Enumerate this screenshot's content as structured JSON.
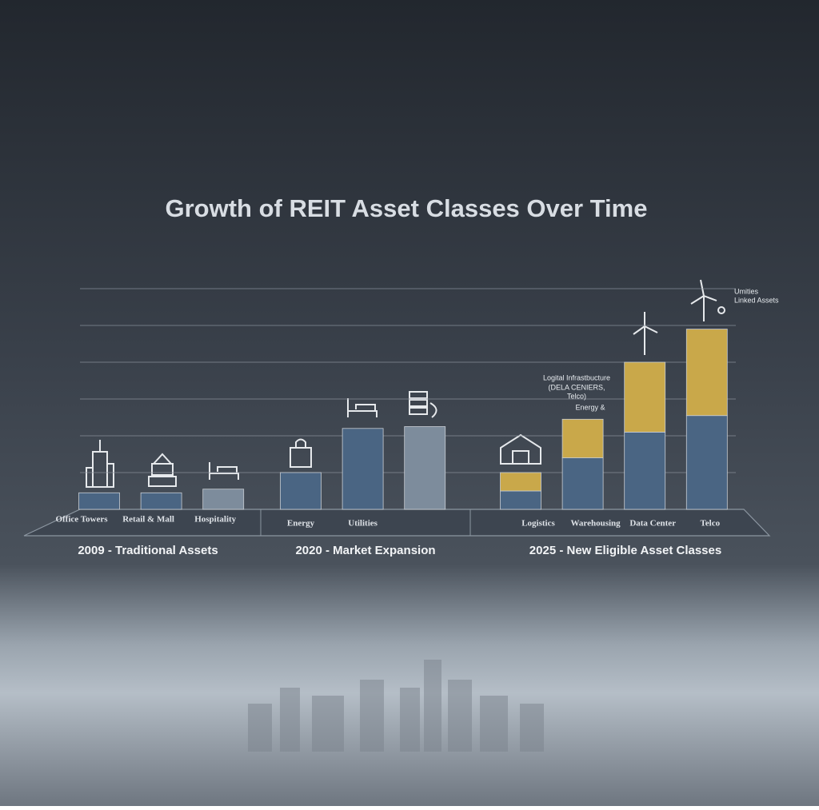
{
  "chart_data": {
    "type": "stacked-bar",
    "title": "Growth of REIT Asset Classes Over Time",
    "groups": [
      {
        "label": "2009 - Traditional Assets",
        "categories": [
          "Office Towers",
          "Retail & Mall",
          "Hospitality"
        ]
      },
      {
        "label": "2020 - Market Expansion",
        "categories": [
          "Energy",
          "Utilities",
          null
        ]
      },
      {
        "label": "2025 - New Eligible Asset Classes",
        "categories": [
          "Logistics",
          "Warehousing",
          "Data Center",
          "Telco"
        ]
      }
    ],
    "series": [
      {
        "colors": [
          "#4a6583",
          "#4a6583",
          "#7d8c9c",
          "#4a6583",
          "#4a6583",
          "#7d8c9c",
          "#4a6583",
          "#4a6583",
          "#4a6583",
          "#4a6583"
        ],
        "values": [
          0.45,
          0.45,
          0.55,
          1.0,
          2.2,
          2.25,
          0.5,
          1.4,
          2.1,
          2.55
        ]
      },
      {
        "color": "#c9a84a",
        "values": [
          null,
          null,
          null,
          null,
          null,
          null,
          0.5,
          1.05,
          1.9,
          2.35
        ]
      }
    ],
    "ylim": [
      0,
      6
    ],
    "yticks": [
      1,
      2,
      3,
      4,
      5,
      6
    ],
    "grid": true,
    "annotations": [
      "Logital Infrastbucture",
      "(DELA CENIERS,",
      "Telco)",
      "Energy &",
      "Umities",
      "Linked Assets"
    ]
  }
}
